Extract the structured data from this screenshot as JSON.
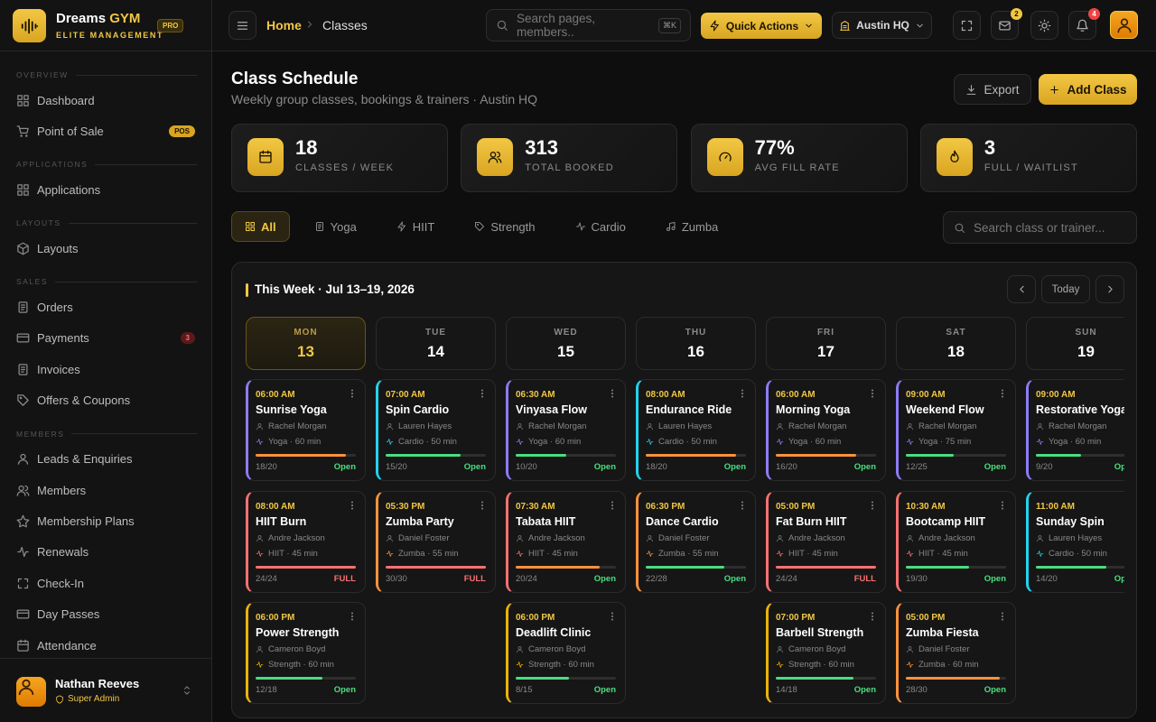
{
  "brand": {
    "name": "Dreams",
    "accent": "GYM",
    "tagline": "ELITE MANAGEMENT",
    "badge": "PRO"
  },
  "sidebar": {
    "sections": [
      {
        "title": "OVERVIEW",
        "items": [
          {
            "label": "Dashboard"
          },
          {
            "label": "Point of Sale",
            "badge": "POS"
          }
        ]
      },
      {
        "title": "APPLICATIONS",
        "items": [
          {
            "label": "Applications"
          }
        ]
      },
      {
        "title": "LAYOUTS",
        "items": [
          {
            "label": "Layouts"
          }
        ]
      },
      {
        "title": "SALES",
        "items": [
          {
            "label": "Orders"
          },
          {
            "label": "Payments",
            "badge": 3
          },
          {
            "label": "Invoices"
          },
          {
            "label": "Offers & Coupons"
          }
        ]
      },
      {
        "title": "MEMBERS",
        "items": [
          {
            "label": "Leads & Enquiries"
          },
          {
            "label": "Members"
          },
          {
            "label": "Membership Plans"
          },
          {
            "label": "Renewals"
          },
          {
            "label": "Check-In"
          },
          {
            "label": "Day Passes"
          },
          {
            "label": "Attendance"
          }
        ]
      }
    ],
    "user": {
      "name": "Nathan Reeves",
      "role": "Super Admin"
    }
  },
  "topbar": {
    "breadcrumb": [
      "Home",
      "Classes"
    ],
    "search": "Search pages, members..",
    "shortcut": "⌘K",
    "quick_actions": "Quick Actions",
    "location": "Austin HQ",
    "mail_count": 2,
    "notif_count": 4
  },
  "header": {
    "title": "Class Schedule",
    "subtitle": "Weekly group classes, bookings & trainers · Austin HQ",
    "export": "Export",
    "add": "Add Class"
  },
  "stats": [
    {
      "value": "18",
      "label": "CLASSES / WEEK"
    },
    {
      "value": "313",
      "label": "TOTAL BOOKED"
    },
    {
      "value": "77%",
      "label": "AVG FILL RATE"
    },
    {
      "value": "3",
      "label": "FULL / WAITLIST"
    }
  ],
  "filters": [
    "All",
    "Yoga",
    "HIIT",
    "Strength",
    "Cardio",
    "Zumba"
  ],
  "filter_search": "Search class or trainer...",
  "calendar": {
    "title": "This Week · Jul 13–19, 2026",
    "today": "Today",
    "days": [
      {
        "name": "MON",
        "date": "13",
        "classes": [
          {
            "time": "06:00 AM",
            "name": "Sunrise Yoga",
            "trainer": "Rachel Morgan",
            "meta": "Yoga · 60 min",
            "capacity": "18/20",
            "status": "Open",
            "color": "#8b7cf6"
          },
          {
            "time": "08:00 AM",
            "name": "HIIT Burn",
            "trainer": "Andre Jackson",
            "meta": "HIIT · 45 min",
            "capacity": "24/24",
            "status": "FULL",
            "color": "#f87171"
          },
          {
            "time": "06:00 PM",
            "name": "Power Strength",
            "trainer": "Cameron Boyd",
            "meta": "Strength · 60 min",
            "capacity": "12/18",
            "status": "Open",
            "color": "#eab308"
          }
        ]
      },
      {
        "name": "TUE",
        "date": "14",
        "classes": [
          {
            "time": "07:00 AM",
            "name": "Spin Cardio",
            "trainer": "Lauren Hayes",
            "meta": "Cardio · 50 min",
            "capacity": "15/20",
            "status": "Open",
            "color": "#22d3ee"
          },
          {
            "time": "05:30 PM",
            "name": "Zumba Party",
            "trainer": "Daniel Foster",
            "meta": "Zumba · 55 min",
            "capacity": "30/30",
            "status": "FULL",
            "color": "#fb923c"
          }
        ]
      },
      {
        "name": "WED",
        "date": "15",
        "classes": [
          {
            "time": "06:30 AM",
            "name": "Vinyasa Flow",
            "trainer": "Rachel Morgan",
            "meta": "Yoga · 60 min",
            "capacity": "10/20",
            "status": "Open",
            "color": "#8b7cf6"
          },
          {
            "time": "07:30 AM",
            "name": "Tabata HIIT",
            "trainer": "Andre Jackson",
            "meta": "HIIT · 45 min",
            "capacity": "20/24",
            "status": "Open",
            "color": "#f87171"
          },
          {
            "time": "06:00 PM",
            "name": "Deadlift Clinic",
            "trainer": "Cameron Boyd",
            "meta": "Strength · 60 min",
            "capacity": "8/15",
            "status": "Open",
            "color": "#eab308"
          }
        ]
      },
      {
        "name": "THU",
        "date": "16",
        "classes": [
          {
            "time": "08:00 AM",
            "name": "Endurance Ride",
            "trainer": "Lauren Hayes",
            "meta": "Cardio · 50 min",
            "capacity": "18/20",
            "status": "Open",
            "color": "#22d3ee"
          },
          {
            "time": "06:30 PM",
            "name": "Dance Cardio",
            "trainer": "Daniel Foster",
            "meta": "Zumba · 55 min",
            "capacity": "22/28",
            "status": "Open",
            "color": "#fb923c"
          }
        ]
      },
      {
        "name": "FRI",
        "date": "17",
        "classes": [
          {
            "time": "06:00 AM",
            "name": "Morning Yoga",
            "trainer": "Rachel Morgan",
            "meta": "Yoga · 60 min",
            "capacity": "16/20",
            "status": "Open",
            "color": "#8b7cf6"
          },
          {
            "time": "05:00 PM",
            "name": "Fat Burn HIIT",
            "trainer": "Andre Jackson",
            "meta": "HIIT · 45 min",
            "capacity": "24/24",
            "status": "FULL",
            "color": "#f87171"
          },
          {
            "time": "07:00 PM",
            "name": "Barbell Strength",
            "trainer": "Cameron Boyd",
            "meta": "Strength · 60 min",
            "capacity": "14/18",
            "status": "Open",
            "color": "#eab308"
          }
        ]
      },
      {
        "name": "SAT",
        "date": "18",
        "classes": [
          {
            "time": "09:00 AM",
            "name": "Weekend Flow",
            "trainer": "Rachel Morgan",
            "meta": "Yoga · 75 min",
            "capacity": "12/25",
            "status": "Open",
            "color": "#8b7cf6"
          },
          {
            "time": "10:30 AM",
            "name": "Bootcamp HIIT",
            "trainer": "Andre Jackson",
            "meta": "HIIT · 45 min",
            "capacity": "19/30",
            "status": "Open",
            "color": "#f87171"
          },
          {
            "time": "05:00 PM",
            "name": "Zumba Fiesta",
            "trainer": "Daniel Foster",
            "meta": "Zumba · 60 min",
            "capacity": "28/30",
            "status": "Open",
            "color": "#fb923c"
          }
        ]
      },
      {
        "name": "SUN",
        "date": "19",
        "classes": [
          {
            "time": "09:00 AM",
            "name": "Restorative Yoga",
            "trainer": "Rachel Morgan",
            "meta": "Yoga · 60 min",
            "capacity": "9/20",
            "status": "Open",
            "color": "#8b7cf6"
          },
          {
            "time": "11:00 AM",
            "name": "Sunday Spin",
            "trainer": "Lauren Hayes",
            "meta": "Cardio · 50 min",
            "capacity": "14/20",
            "status": "Open",
            "color": "#22d3ee"
          }
        ]
      }
    ]
  }
}
